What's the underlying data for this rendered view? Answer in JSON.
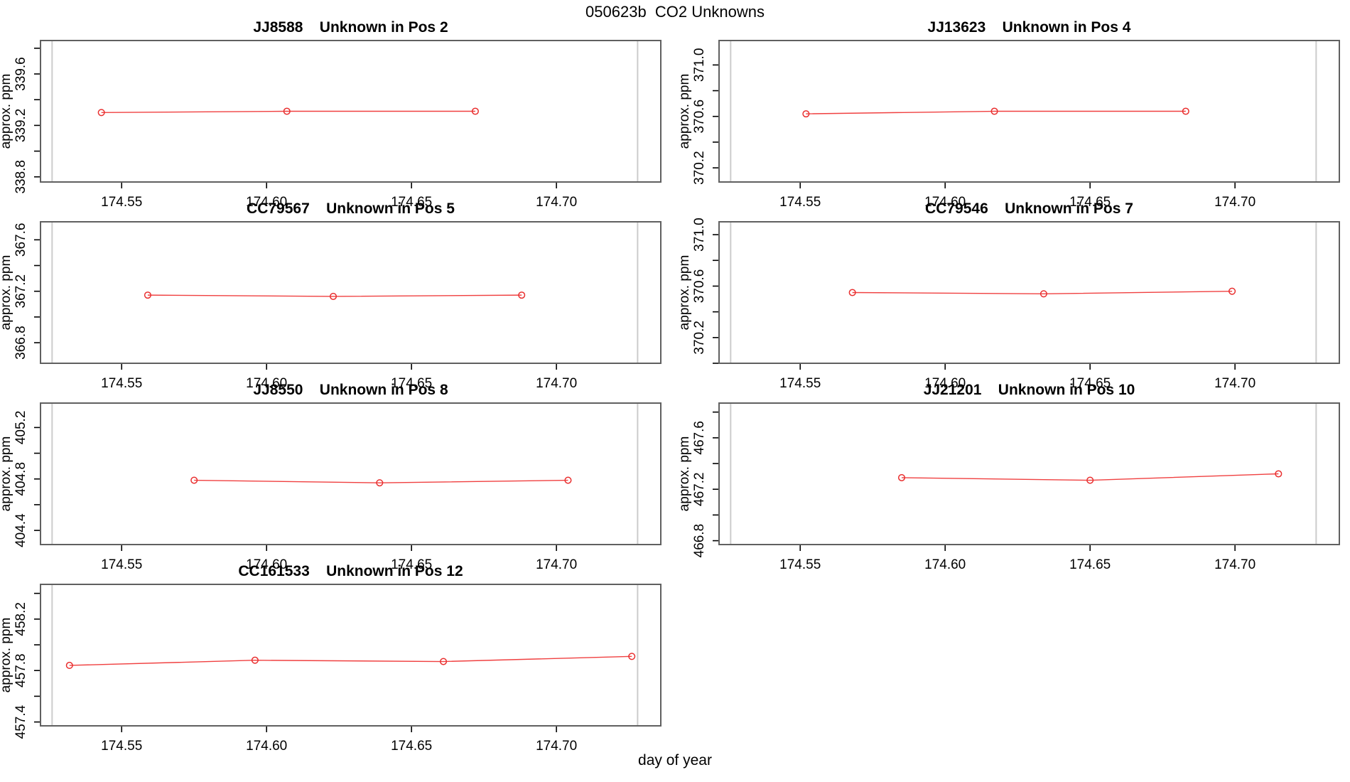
{
  "figure": {
    "title": "050623b  CO2 Unknowns",
    "xlabel": "day of year",
    "ylabel": "approx. ppm",
    "colors": {
      "series_line": "#f04040",
      "marker_stroke": "#e92f2f",
      "box_border": "#606060",
      "tick": "#000000",
      "reference_line": "#cccccc",
      "background": "#ffffff"
    }
  },
  "chart_data": {
    "type": "line",
    "title": "050623b  CO2 Unknowns",
    "xlabel": "day of year",
    "ylabel": "approx. ppm",
    "legend": "none",
    "grid": "off",
    "xlim": [
      174.522,
      174.736
    ],
    "xticks": [
      {
        "v": 174.55,
        "label": "174.55"
      },
      {
        "v": 174.6,
        "label": "174.60"
      },
      {
        "v": 174.65,
        "label": "174.65"
      },
      {
        "v": 174.7,
        "label": "174.70"
      }
    ],
    "reference_lines_x": [
      174.526,
      174.728
    ],
    "minor_tick_step_y": 0.2,
    "plots": [
      {
        "sample_id": "JJ8588",
        "subtitle": "Unknown in Pos 2",
        "x": [
          174.543,
          174.607,
          174.672
        ],
        "y": [
          339.3,
          339.31,
          339.31
        ],
        "ylim": [
          338.76,
          339.86
        ],
        "yticks": [
          {
            "v": 338.8,
            "label": "338.8"
          },
          {
            "v": 339.2,
            "label": "339.2"
          },
          {
            "v": 339.6,
            "label": "339.6"
          }
        ]
      },
      {
        "sample_id": "JJ13623",
        "subtitle": "Unknown in Pos 4",
        "x": [
          174.552,
          174.617,
          174.683
        ],
        "y": [
          370.62,
          370.64,
          370.64
        ],
        "ylim": [
          370.09,
          371.19
        ],
        "yticks": [
          {
            "v": 370.2,
            "label": "370.2"
          },
          {
            "v": 370.6,
            "label": "370.6"
          },
          {
            "v": 371.0,
            "label": "371.0"
          }
        ]
      },
      {
        "sample_id": "CC79567",
        "subtitle": "Unknown in Pos 5",
        "x": [
          174.559,
          174.623,
          174.688
        ],
        "y": [
          367.17,
          367.16,
          367.17
        ],
        "ylim": [
          366.64,
          367.74
        ],
        "yticks": [
          {
            "v": 366.8,
            "label": "366.8"
          },
          {
            "v": 367.2,
            "label": "367.2"
          },
          {
            "v": 367.6,
            "label": "367.6"
          }
        ]
      },
      {
        "sample_id": "CC79546",
        "subtitle": "Unknown in Pos 7",
        "x": [
          174.568,
          174.634,
          174.699
        ],
        "y": [
          370.55,
          370.54,
          370.56
        ],
        "ylim": [
          370.0,
          371.1
        ],
        "yticks": [
          {
            "v": 370.2,
            "label": "370.2"
          },
          {
            "v": 370.6,
            "label": "370.6"
          },
          {
            "v": 371.0,
            "label": "371.0"
          }
        ]
      },
      {
        "sample_id": "JJ8550",
        "subtitle": "Unknown in Pos 8",
        "x": [
          174.575,
          174.639,
          174.704
        ],
        "y": [
          404.79,
          404.77,
          404.79
        ],
        "ylim": [
          404.29,
          405.39
        ],
        "yticks": [
          {
            "v": 404.4,
            "label": "404.4"
          },
          {
            "v": 404.8,
            "label": "404.8"
          },
          {
            "v": 405.2,
            "label": "405.2"
          }
        ]
      },
      {
        "sample_id": "JJ21201",
        "subtitle": "Unknown in Pos 10",
        "x": [
          174.585,
          174.65,
          174.715
        ],
        "y": [
          467.29,
          467.27,
          467.32
        ],
        "ylim": [
          466.77,
          467.87
        ],
        "yticks": [
          {
            "v": 466.8,
            "label": "466.8"
          },
          {
            "v": 467.2,
            "label": "467.2"
          },
          {
            "v": 467.6,
            "label": "467.6"
          }
        ]
      },
      {
        "sample_id": "CC161533",
        "subtitle": "Unknown in Pos 12",
        "x": [
          174.532,
          174.596,
          174.661,
          174.726
        ],
        "y": [
          457.84,
          457.88,
          457.87,
          457.91
        ],
        "ylim": [
          457.37,
          458.47
        ],
        "yticks": [
          {
            "v": 457.4,
            "label": "457.4"
          },
          {
            "v": 457.8,
            "label": "457.8"
          },
          {
            "v": 458.2,
            "label": "458.2"
          }
        ]
      }
    ]
  }
}
